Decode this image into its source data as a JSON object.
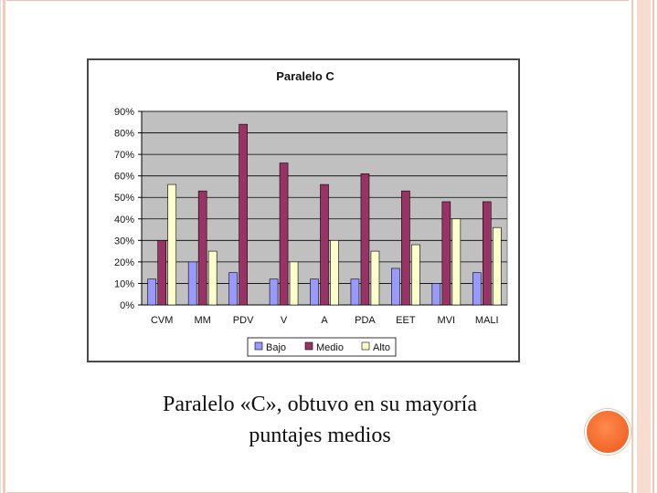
{
  "colors": {
    "plot_bg": "#c0c0c0",
    "bajo": "#9999ff",
    "medio": "#993366",
    "alto": "#ffffcc",
    "orange_dot": "#f2662a",
    "border_peach": "#f2c1ad"
  },
  "caption": {
    "line1": "Paralelo «C», obtuvo en su mayoría",
    "line2": "puntajes medios"
  },
  "chart_data": {
    "type": "bar",
    "title": "Paralelo C",
    "xlabel": "",
    "ylabel": "",
    "categories": [
      "CVM",
      "MM",
      "PDV",
      "V",
      "A",
      "PDA",
      "EET",
      "MVI",
      "MALI"
    ],
    "series": [
      {
        "name": "Bajo",
        "values": [
          12,
          20,
          15,
          12,
          12,
          12,
          17,
          10,
          15
        ]
      },
      {
        "name": "Medio",
        "values": [
          30,
          53,
          84,
          66,
          56,
          61,
          53,
          48,
          48
        ]
      },
      {
        "name": "Alto",
        "values": [
          56,
          25,
          0,
          20,
          30,
          25,
          28,
          40,
          36
        ]
      }
    ],
    "ylim": [
      0,
      90
    ],
    "yticks": [
      "0%",
      "10%",
      "20%",
      "30%",
      "40%",
      "50%",
      "60%",
      "70%",
      "80%",
      "90%"
    ],
    "ytick_values": [
      0,
      10,
      20,
      30,
      40,
      50,
      60,
      70,
      80,
      90
    ],
    "grid": true,
    "legend_position": "bottom"
  }
}
